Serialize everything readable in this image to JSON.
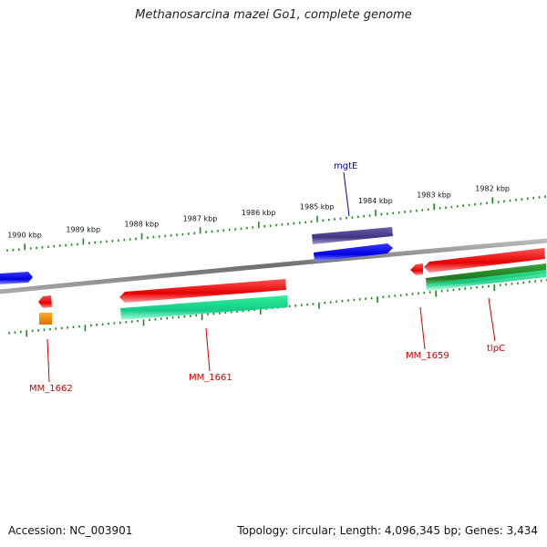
{
  "title": "Methanosarcina mazei Go1, complete genome",
  "footer": {
    "accession": "Accession: NC_003901",
    "summary": "Topology: circular; Length: 4,096,345 bp; Genes: 3,434"
  },
  "ruler": {
    "unit": "kbp",
    "labels": [
      "1990 kbp",
      "1989 kbp",
      "1988 kbp",
      "1987 kbp",
      "1986 kbp",
      "1985 kbp",
      "1984 kbp",
      "1983 kbp",
      "1982 kbp"
    ]
  },
  "genes": [
    {
      "label": "mgtE",
      "color": "#0000cc"
    },
    {
      "label": "MM_1662",
      "color": "#cc0000"
    },
    {
      "label": "MM_1661",
      "color": "#cc0000"
    },
    {
      "label": "MM_1659",
      "color": "#cc0000"
    },
    {
      "label": "tlpC",
      "color": "#cc0000"
    }
  ],
  "colors": {
    "backbone": "#808080",
    "tick": "#1a8a1a",
    "cds_red": "#ee1111",
    "cds_blue": "#1111ee",
    "gene_blue": "#1111ee",
    "gene_purple": "#4b3f8c",
    "green_teal": "#22dd99",
    "green_dark": "#228822",
    "orange": "#f08a00"
  }
}
